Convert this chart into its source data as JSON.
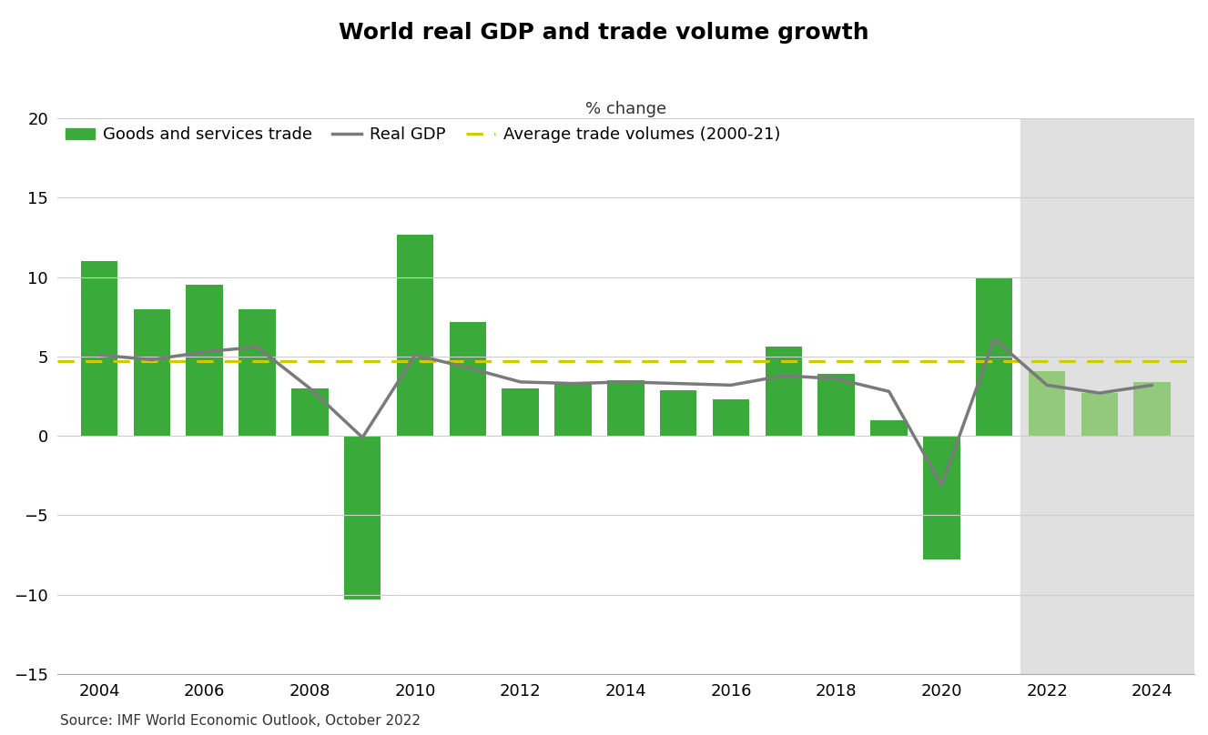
{
  "title": "World real GDP and trade volume growth",
  "subtitle": "% change",
  "source": "Source: IMF World Economic Outlook, October 2022",
  "years": [
    2004,
    2005,
    2006,
    2007,
    2008,
    2009,
    2010,
    2011,
    2012,
    2013,
    2014,
    2015,
    2016,
    2017,
    2018,
    2019,
    2020,
    2021,
    2022,
    2023,
    2024
  ],
  "trade_volumes": [
    11.0,
    8.0,
    9.5,
    8.0,
    3.0,
    -10.3,
    12.7,
    7.2,
    3.0,
    3.3,
    3.5,
    2.9,
    2.3,
    5.6,
    3.9,
    1.0,
    -7.8,
    10.0,
    4.1,
    2.7,
    3.4
  ],
  "real_gdp": [
    5.1,
    4.8,
    5.3,
    5.6,
    3.0,
    -0.1,
    5.1,
    4.3,
    3.4,
    3.3,
    3.4,
    3.3,
    3.2,
    3.8,
    3.6,
    2.8,
    -3.1,
    6.1,
    3.2,
    2.7,
    3.2
  ],
  "avg_trade_line": 4.7,
  "forecast_start_year": 2022,
  "shading_start": 2021.5,
  "bar_color_normal": "#3aaa3a",
  "bar_color_forecast": "#92c97a",
  "gdp_line_color": "#7a7a7a",
  "avg_line_color": "#cccc00",
  "background_shading_color": "#e0e0e0",
  "ylim": [
    -15,
    20
  ],
  "yticks": [
    -15,
    -10,
    -5,
    0,
    5,
    10,
    15,
    20
  ],
  "title_fontsize": 18,
  "subtitle_fontsize": 13,
  "axis_fontsize": 13,
  "legend_fontsize": 13,
  "xlim_left": 2003.2,
  "xlim_right": 2024.8
}
